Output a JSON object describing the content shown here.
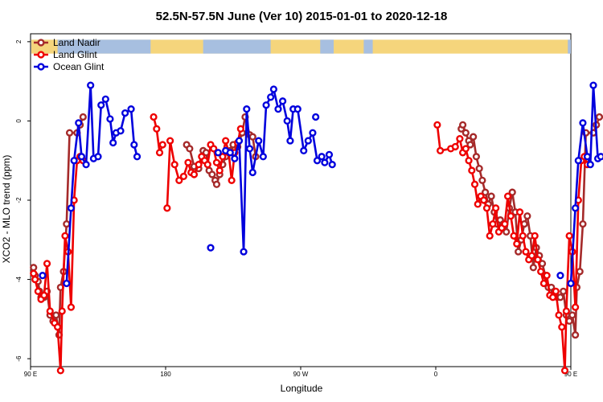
{
  "chart_data": {
    "type": "line",
    "title": "52.5N-57.5N June (Ver 10)   2015-01-01 to 2020-12-18",
    "xlabel": "Longitude",
    "ylabel": "XCO2 - MLO trend (ppm)",
    "xlim": [
      90,
      450
    ],
    "ylim": [
      -6.2,
      2.2
    ],
    "x_ticks": [
      {
        "value": 90,
        "label": "90 E"
      },
      {
        "value": 180,
        "label": "180"
      },
      {
        "value": 270,
        "label": "90 W"
      },
      {
        "value": 360,
        "label": "0"
      },
      {
        "value": 450,
        "label": "90 E"
      }
    ],
    "extra_x_ticks": [
      450,
      540,
      630,
      720,
      810
    ],
    "y_ticks": [
      {
        "value": -6,
        "label": "-6"
      },
      {
        "value": -4,
        "label": "-4"
      },
      {
        "value": -2,
        "label": "-2"
      },
      {
        "value": 0,
        "label": "0"
      },
      {
        "value": 2,
        "label": "2"
      }
    ],
    "map_strip": {
      "label": "land/ocean map strip",
      "y_range": [
        1.7,
        2.05
      ],
      "ocean_color": "#a7bfe0",
      "land_color": "#f5d57c"
    },
    "legend": {
      "position": "top-left"
    },
    "series": [
      {
        "name": "Land Nadir",
        "color": "#a52a2a",
        "segments": [
          [
            [
              92,
              -3.7
            ],
            [
              93,
              -3.9
            ],
            [
              95,
              -4.05
            ],
            [
              96,
              -4.3
            ],
            [
              97,
              -4.45
            ],
            [
              99,
              -4.45
            ],
            [
              101,
              -4.3
            ],
            [
              103,
              -4.9
            ],
            [
              105,
              -5.05
            ],
            [
              107,
              -4.9
            ],
            [
              109,
              -5.4
            ],
            [
              110,
              -4.2
            ],
            [
              112,
              -3.8
            ],
            [
              114,
              -2.6
            ],
            [
              116,
              -0.3
            ],
            [
              121,
              -0.3
            ],
            [
              123,
              -0.1
            ],
            [
              125,
              0.1
            ]
          ],
          [
            [
              377,
              -0.2
            ],
            [
              378,
              -0.1
            ],
            [
              380,
              -0.3
            ],
            [
              382,
              -0.5
            ],
            [
              383,
              -0.6
            ],
            [
              385,
              -0.4
            ],
            [
              387,
              -0.9
            ],
            [
              389,
              -1.2
            ],
            [
              391,
              -1.5
            ],
            [
              393,
              -1.8
            ],
            [
              395,
              -2.1
            ],
            [
              397,
              -1.9
            ],
            [
              399,
              -2.3
            ],
            [
              401,
              -2.6
            ],
            [
              403,
              -2.5
            ],
            [
              405,
              -2.6
            ],
            [
              407,
              -2.8
            ],
            [
              409,
              -2.2
            ],
            [
              411,
              -1.8
            ],
            [
              413,
              -2.3
            ],
            [
              415,
              -3.3
            ],
            [
              417,
              -3.0
            ],
            [
              419,
              -2.6
            ],
            [
              421,
              -2.4
            ],
            [
              423,
              -2.9
            ],
            [
              425,
              -3.7
            ],
            [
              427,
              -3.2
            ],
            [
              429,
              -3.4
            ],
            [
              431,
              -3.6
            ],
            [
              433,
              -3.9
            ],
            [
              435,
              -4.2
            ],
            [
              437,
              -4.2
            ],
            [
              439,
              -4.3
            ],
            [
              441,
              -4.45
            ],
            [
              443,
              -4.45
            ],
            [
              445,
              -4.3
            ],
            [
              447,
              -4.9
            ],
            [
              449,
              -5.05
            ],
            [
              451,
              -4.9
            ],
            [
              453,
              -5.4
            ],
            [
              454,
              -4.2
            ],
            [
              456,
              -3.8
            ],
            [
              458,
              -2.6
            ],
            [
              460,
              -0.3
            ],
            [
              465,
              -0.3
            ],
            [
              467,
              -0.1
            ],
            [
              469,
              0.1
            ]
          ],
          [
            [
              194,
              -0.6
            ],
            [
              196,
              -0.7
            ],
            [
              199,
              -1.15
            ],
            [
              202,
              -1.2
            ],
            [
              205,
              -0.75
            ],
            [
              207,
              -0.8
            ],
            [
              209,
              -1.25
            ],
            [
              211,
              -1.35
            ],
            [
              213,
              -1.5
            ],
            [
              214,
              -1.6
            ],
            [
              216,
              -1.35
            ],
            [
              218,
              -1.1
            ],
            [
              220,
              -0.9
            ],
            [
              223,
              -0.75
            ],
            [
              225,
              -0.6
            ],
            [
              228,
              -0.65
            ],
            [
              231,
              -0.3
            ],
            [
              233,
              0.1
            ],
            [
              236,
              -0.35
            ],
            [
              238,
              -0.4
            ],
            [
              240,
              -0.9
            ]
          ]
        ]
      },
      {
        "name": "Land Glint",
        "color": "#ee0000",
        "segments": [
          [
            [
              92,
              -3.85
            ],
            [
              93,
              -4.0
            ],
            [
              95,
              -4.3
            ],
            [
              97,
              -4.5
            ],
            [
              99,
              -4.4
            ],
            [
              101,
              -3.6
            ],
            [
              103,
              -4.8
            ],
            [
              106,
              -5.1
            ],
            [
              108,
              -5.2
            ],
            [
              110,
              -6.3
            ],
            [
              111,
              -4.8
            ],
            [
              113,
              -2.9
            ],
            [
              115,
              -3.3
            ],
            [
              117,
              -4.7
            ],
            [
              119,
              -2.0
            ],
            [
              121,
              -1.0
            ],
            [
              123,
              -0.9
            ],
            [
              125,
              -1.0
            ]
          ],
          [
            [
              172,
              0.1
            ],
            [
              174,
              -0.2
            ],
            [
              176,
              -0.8
            ],
            [
              178,
              -0.6
            ]
          ],
          [
            [
              181,
              -2.2
            ],
            [
              183,
              -0.5
            ],
            [
              186,
              -1.1
            ],
            [
              189,
              -1.5
            ],
            [
              192,
              -1.4
            ],
            [
              195,
              -1.05
            ],
            [
              197,
              -1.3
            ],
            [
              199,
              -1.35
            ],
            [
              202,
              -1.1
            ],
            [
              204,
              -0.9
            ],
            [
              206,
              -1.0
            ],
            [
              208,
              -1.1
            ],
            [
              210,
              -0.6
            ],
            [
              212,
              -0.7
            ],
            [
              214,
              -1.05
            ],
            [
              216,
              -1.25
            ],
            [
              218,
              -0.9
            ],
            [
              220,
              -0.5
            ],
            [
              222,
              -0.8
            ],
            [
              224,
              -1.5
            ],
            [
              226,
              -0.8
            ],
            [
              228,
              -0.55
            ],
            [
              230,
              -0.2
            ]
          ],
          [
            [
              361,
              -0.1
            ],
            [
              363,
              -0.75
            ],
            [
              370,
              -0.7
            ],
            [
              373,
              -0.65
            ],
            [
              376,
              -0.45
            ],
            [
              378,
              -0.8
            ],
            [
              380,
              -0.7
            ],
            [
              382,
              -1.0
            ],
            [
              384,
              -1.25
            ],
            [
              386,
              -1.6
            ],
            [
              388,
              -2.1
            ],
            [
              390,
              -1.9
            ],
            [
              392,
              -2.0
            ],
            [
              394,
              -2.2
            ],
            [
              396,
              -2.9
            ],
            [
              398,
              -2.6
            ],
            [
              400,
              -2.2
            ],
            [
              402,
              -2.8
            ],
            [
              404,
              -2.7
            ],
            [
              406,
              -2.6
            ],
            [
              408,
              -1.9
            ],
            [
              410,
              -2.4
            ],
            [
              412,
              -2.9
            ],
            [
              414,
              -3.1
            ],
            [
              416,
              -2.3
            ],
            [
              418,
              -2.9
            ],
            [
              420,
              -3.3
            ],
            [
              422,
              -3.5
            ],
            [
              424,
              -3.4
            ],
            [
              426,
              -2.9
            ],
            [
              428,
              -3.5
            ],
            [
              430,
              -3.8
            ],
            [
              432,
              -4.1
            ],
            [
              434,
              -3.9
            ],
            [
              436,
              -4.4
            ],
            [
              438,
              -4.45
            ],
            [
              440,
              -4.3
            ],
            [
              442,
              -4.9
            ],
            [
              444,
              -5.2
            ],
            [
              446,
              -6.3
            ],
            [
              447,
              -4.8
            ],
            [
              449,
              -2.9
            ],
            [
              451,
              -3.3
            ],
            [
              453,
              -4.7
            ],
            [
              455,
              -2.0
            ],
            [
              457,
              -1.0
            ],
            [
              459,
              -0.9
            ],
            [
              461,
              -1.1
            ]
          ]
        ]
      },
      {
        "name": "Ocean Glint",
        "color": "#0000dd",
        "segments": [
          [
            [
              98,
              -3.9
            ]
          ],
          [
            [
              114,
              -4.1
            ],
            [
              117,
              -2.2
            ],
            [
              119,
              -1.0
            ],
            [
              122,
              -0.05
            ],
            [
              124,
              -0.9
            ],
            [
              127,
              -1.1
            ],
            [
              130,
              0.9
            ],
            [
              132,
              -0.95
            ],
            [
              135,
              -0.9
            ],
            [
              137,
              0.4
            ],
            [
              140,
              0.55
            ],
            [
              143,
              0.05
            ],
            [
              145,
              -0.55
            ],
            [
              147,
              -0.3
            ],
            [
              150,
              -0.25
            ],
            [
              153,
              0.2
            ],
            [
              157,
              0.3
            ],
            [
              159,
              -0.6
            ],
            [
              161,
              -0.9
            ]
          ],
          [
            [
              220,
              -0.75
            ],
            [
              223,
              -0.8
            ],
            [
              226,
              -0.95
            ],
            [
              229,
              -0.5
            ],
            [
              232,
              -3.3
            ],
            [
              234,
              0.3
            ],
            [
              236,
              -0.7
            ],
            [
              238,
              -1.3
            ],
            [
              242,
              -0.5
            ],
            [
              245,
              -0.9
            ],
            [
              247,
              0.4
            ],
            [
              250,
              0.6
            ],
            [
              252,
              0.8
            ],
            [
              255,
              0.3
            ],
            [
              258,
              0.5
            ],
            [
              261,
              0.0
            ],
            [
              263,
              -0.5
            ],
            [
              265,
              0.3
            ],
            [
              268,
              0.3
            ],
            [
              272,
              -0.75
            ],
            [
              275,
              -0.5
            ],
            [
              278,
              -0.3
            ],
            [
              281,
              -1.0
            ],
            [
              284,
              -0.9
            ],
            [
              286,
              -1.05
            ],
            [
              289,
              -0.85
            ],
            [
              291,
              -1.1
            ]
          ],
          [
            [
              210,
              -3.2
            ]
          ],
          [
            [
              215,
              -0.8
            ]
          ],
          [
            [
              280,
              0.1
            ]
          ],
          [
            [
              443,
              -3.9
            ]
          ],
          [
            [
              450,
              -4.1
            ],
            [
              453,
              -2.2
            ],
            [
              455,
              -1.0
            ],
            [
              458,
              -0.05
            ],
            [
              461,
              -0.9
            ],
            [
              463,
              -1.1
            ],
            [
              465,
              0.9
            ],
            [
              468,
              -0.95
            ],
            [
              470,
              -0.9
            ]
          ]
        ]
      }
    ]
  }
}
